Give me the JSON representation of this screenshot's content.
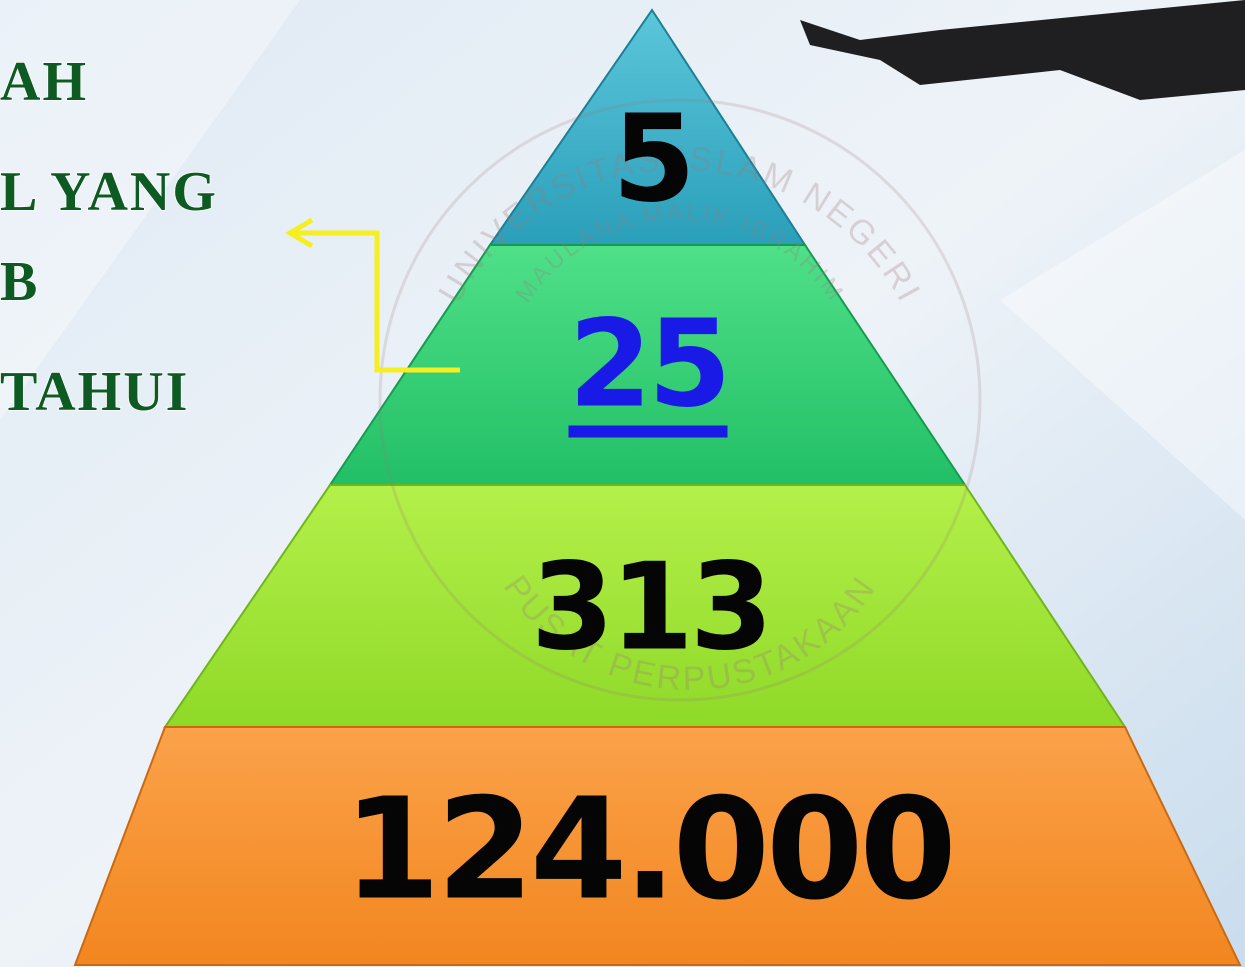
{
  "left_text": {
    "lines": [
      "AH",
      "L YANG",
      "B",
      "TAHUI"
    ]
  },
  "pyramid": {
    "levels": [
      {
        "label": "5"
      },
      {
        "label": "25"
      },
      {
        "label": "313"
      },
      {
        "label": "124.000"
      }
    ]
  },
  "watermark": {
    "top": "UNIVERSITAS ISLAM NEGERI",
    "middle": "MAULANA MALIK IBRAHIM",
    "bottom": "PUSAT PERPUSTAKAAN"
  }
}
